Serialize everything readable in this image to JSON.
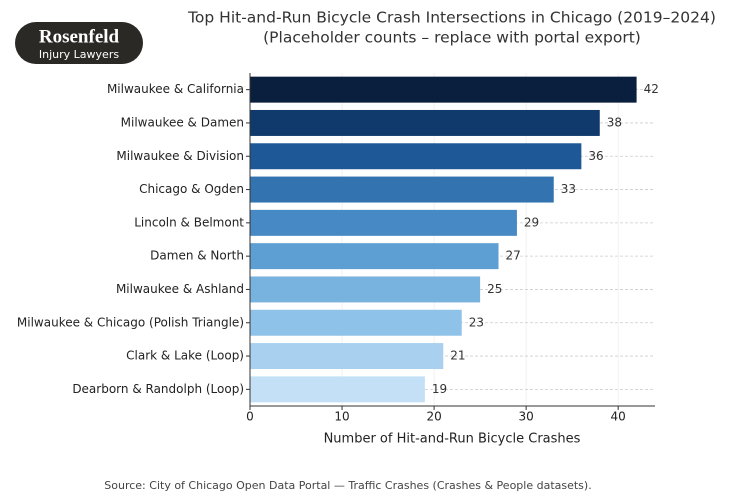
{
  "logo": {
    "name": "Rosenfeld",
    "tagline": "Injury Lawyers"
  },
  "chart_data": {
    "type": "bar",
    "orientation": "horizontal",
    "title": "Top Hit-and-Run Bicycle Crash Intersections in Chicago (2019–2024)",
    "subtitle": "(Placeholder counts – replace with portal export)",
    "x_label": "Number of Hit-and-Run Bicycle Crashes",
    "categories": [
      "Milwaukee & California",
      "Milwaukee & Damen",
      "Milwaukee & Division",
      "Chicago & Ogden",
      "Lincoln & Belmont",
      "Damen & North",
      "Milwaukee & Ashland",
      "Milwaukee & Chicago (Polish Triangle)",
      "Clark & Lake (Loop)",
      "Dearborn & Randolph (Loop)"
    ],
    "values": [
      42,
      38,
      36,
      33,
      29,
      27,
      25,
      23,
      21,
      19
    ],
    "colors": [
      "#0a1f3d",
      "#103a6b",
      "#1f5896",
      "#3273b0",
      "#4689c4",
      "#5d9fd3",
      "#78b2df",
      "#8fc2e8",
      "#a9d1ef",
      "#c3e0f6"
    ],
    "xlim": [
      0,
      44
    ],
    "xticks": [
      0,
      10,
      20,
      30,
      40
    ],
    "grid": true,
    "source": "Source: City of Chicago Open Data Portal — Traffic Crashes (Crashes & People datasets)."
  }
}
